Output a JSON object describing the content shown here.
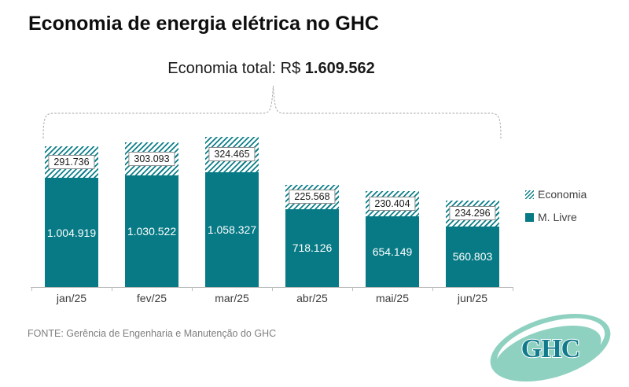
{
  "title": "Economia de energia elétrica no GHC",
  "subtitle": {
    "prefix": "Economia total: R$ ",
    "value_bold": "1.609.562"
  },
  "source": "FONTE: Gerência de Engenharia e Manutenção do GHC",
  "logo": {
    "text": "GHC"
  },
  "colors": {
    "teal_solid": "#077a85",
    "hatch_stripe": "#0d7f8a",
    "axis_gray": "#bfbfbf",
    "brace_gray": "#a6a6a6",
    "source_gray": "#7f7f7f",
    "logo_mint": "#8fd1c0",
    "logo_text_teal": "#117a8c"
  },
  "chart_data": {
    "type": "bar",
    "stacked": true,
    "grid": false,
    "value_axis_visible": false,
    "legend_position": "right",
    "categories": [
      "jan/25",
      "fev/25",
      "mar/25",
      "abr/25",
      "mai/25",
      "jun/25"
    ],
    "series": [
      {
        "name": "M. Livre",
        "style": "solid",
        "values": [
          1004919,
          1030522,
          1058327,
          718126,
          654149,
          560803
        ],
        "labels": [
          "1.004.919",
          "1.030.522",
          "1.058.327",
          "718.126",
          "654.149",
          "560.803"
        ]
      },
      {
        "name": "Economia",
        "style": "hatch",
        "values": [
          291736,
          303093,
          324465,
          225568,
          230404,
          234296
        ],
        "labels": [
          "291.736",
          "303.093",
          "324.465",
          "225.568",
          "230.404",
          "234.296"
        ]
      }
    ],
    "total": {
      "label": "Economia total",
      "value": 1609562,
      "formatted": "R$ 1.609.562"
    }
  }
}
